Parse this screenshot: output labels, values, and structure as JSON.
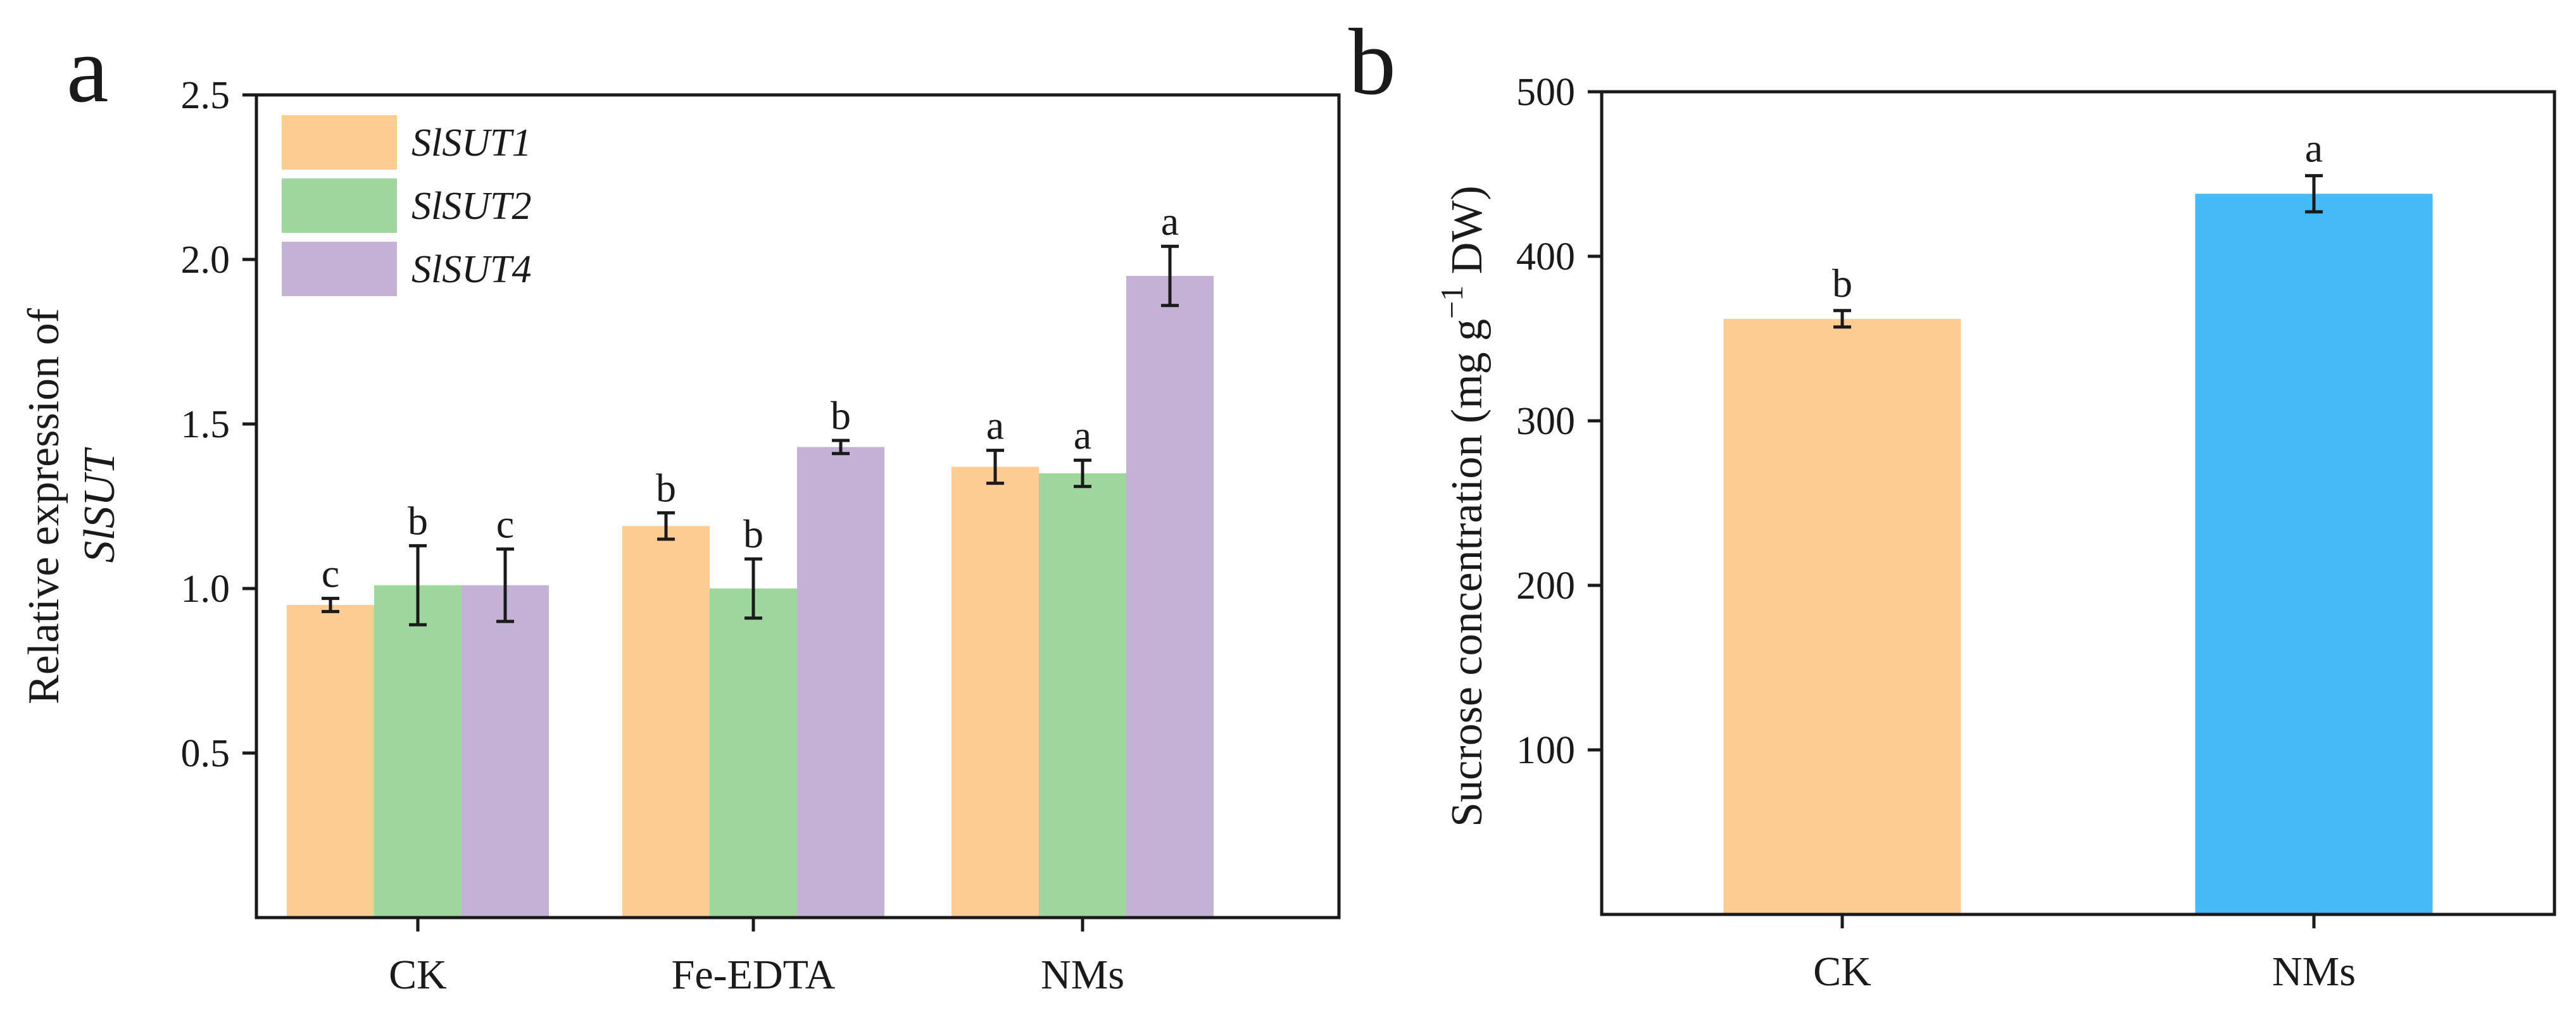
{
  "chart_data": [
    {
      "panel": "a",
      "type": "bar",
      "ylabel": "Relative expression of",
      "ylabel_italic": "SlSUT",
      "xlabel": "",
      "ylim": [
        0,
        2.5
      ],
      "yticks": [
        0.5,
        1.0,
        1.5,
        2.0,
        2.5
      ],
      "ytick_labels": [
        "0.5",
        "1.0",
        "1.5",
        "2.0",
        "2.5"
      ],
      "categories": [
        "CK",
        "Fe-EDTA",
        "NMs"
      ],
      "legend_position": "top-left",
      "series": [
        {
          "name": "SlSUT1",
          "color": "#FECC93",
          "values": [
            0.95,
            1.19,
            1.37
          ],
          "errors": [
            0.02,
            0.04,
            0.05
          ],
          "letters": [
            "c",
            "b",
            "a"
          ]
        },
        {
          "name": "SlSUT2",
          "color": "#9ED69E",
          "values": [
            1.01,
            1.0,
            1.35
          ],
          "errors": [
            0.12,
            0.09,
            0.04
          ],
          "letters": [
            "b",
            "b",
            "a"
          ]
        },
        {
          "name": "SlSUT4",
          "color": "#C4B1D6",
          "values": [
            1.01,
            1.43,
            1.95
          ],
          "errors": [
            0.11,
            0.02,
            0.09
          ],
          "letters": [
            "c",
            "b",
            "a"
          ]
        }
      ]
    },
    {
      "panel": "b",
      "type": "bar",
      "ylabel": "Sucrose concentration (mg g",
      "ylabel_sup": "−1",
      "ylabel_tail": " DW)",
      "xlabel": "",
      "ylim": [
        0,
        500
      ],
      "yticks": [
        100,
        200,
        300,
        400,
        500
      ],
      "ytick_labels": [
        "100",
        "200",
        "300",
        "400",
        "500"
      ],
      "categories": [
        "CK",
        "NMs"
      ],
      "values": [
        362,
        438
      ],
      "errors": [
        5,
        11
      ],
      "letters": [
        "b",
        "a"
      ],
      "colors": [
        "#FECC93",
        "#45BAF7"
      ]
    }
  ]
}
